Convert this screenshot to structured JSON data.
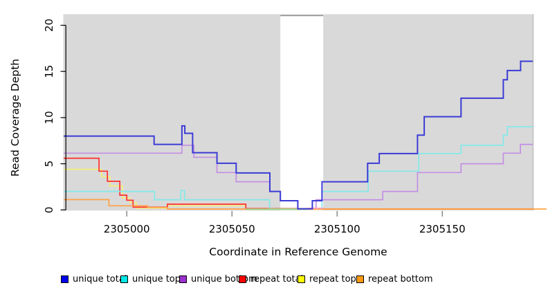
{
  "chart_data": {
    "type": "line",
    "subtype": "step-coverage",
    "title": "",
    "xlabel": "Coordinate in Reference Genome",
    "ylabel": "Read Coverage Depth",
    "xlim": [
      2304970,
      2305193
    ],
    "ylim": [
      0,
      21.2
    ],
    "x_ticks": [
      2305000,
      2305050,
      2305100,
      2305150
    ],
    "y_ticks": [
      0,
      5,
      10,
      15,
      20
    ],
    "grid": "off",
    "plot_bg_color": "#d9d9d9",
    "masked_region": {
      "x1": 2305073,
      "x2": 2305093.4,
      "fill": "#ffffff",
      "top_border_color": "#8c8c8c",
      "note": "white no-data band over gray plot background"
    },
    "series": [
      {
        "name": "repeat top",
        "line_color": "#f6ee79",
        "points": [
          [
            2304970,
            4.4
          ],
          [
            2304988,
            3.6
          ],
          [
            2304992,
            2.6
          ],
          [
            2304998,
            1.3
          ],
          [
            2305001.5,
            0.8
          ],
          [
            2305004.5,
            0.2
          ],
          [
            2305019.3,
            0.45
          ],
          [
            2305056.6,
            0.07
          ],
          [
            2305193,
            0.07
          ]
        ]
      },
      {
        "name": "repeat total",
        "line_color": "#ff2e2e",
        "points": [
          [
            2304970,
            5.6
          ],
          [
            2304986.8,
            4.2
          ],
          [
            2304990.8,
            3.1
          ],
          [
            2304996.7,
            1.6
          ],
          [
            2305000,
            1.05
          ],
          [
            2305003,
            0.3
          ],
          [
            2305019.3,
            0.62
          ],
          [
            2305056.6,
            0.15
          ],
          [
            2305093,
            0.1
          ],
          [
            2305193,
            0.1
          ]
        ]
      },
      {
        "name": "unique bottom",
        "line_color": "#c38fe3",
        "points": [
          [
            2304970,
            6.15
          ],
          [
            2305026.2,
            7.0
          ],
          [
            2305031.9,
            5.7
          ],
          [
            2305042.9,
            4.05
          ],
          [
            2305052,
            3.05
          ],
          [
            2305067.9,
            2.0
          ],
          [
            2305073,
            1.0
          ],
          [
            2305081.3,
            0.12
          ],
          [
            2305090,
            1.1
          ],
          [
            2305121.7,
            2.0
          ],
          [
            2305138.2,
            4.05
          ],
          [
            2305158.9,
            5.0
          ],
          [
            2305179,
            6.15
          ],
          [
            2305187.1,
            7.1
          ],
          [
            2305193,
            7.1
          ]
        ]
      },
      {
        "name": "unique top",
        "line_color": "#82e9e9",
        "points": [
          [
            2304970,
            2.0
          ],
          [
            2305013.2,
            1.1
          ],
          [
            2305025.7,
            2.1
          ],
          [
            2305027.5,
            1.1
          ],
          [
            2305067.9,
            0.12
          ],
          [
            2305092.8,
            2.0
          ],
          [
            2305114.8,
            4.2
          ],
          [
            2305138.8,
            6.1
          ],
          [
            2305158.9,
            7.0
          ],
          [
            2305179,
            8.1
          ],
          [
            2305180.9,
            9.0
          ],
          [
            2305193,
            9.0
          ]
        ]
      },
      {
        "name": "repeat bottom",
        "line_color": "#ffa143",
        "points": [
          [
            2304970,
            1.12
          ],
          [
            2304991.5,
            0.45
          ],
          [
            2305009.9,
            0.27
          ],
          [
            2305019.3,
            0.1
          ],
          [
            2305199.5,
            0.1
          ]
        ]
      },
      {
        "name": "unique total",
        "line_color": "#3b3bd6",
        "line_width": 2,
        "points": [
          [
            2304970,
            8.0
          ],
          [
            2305013,
            7.1
          ],
          [
            2305026.2,
            9.1
          ],
          [
            2305027.6,
            8.3
          ],
          [
            2305031.3,
            6.2
          ],
          [
            2305042.9,
            5.05
          ],
          [
            2305052,
            4.0
          ],
          [
            2305068,
            2.0
          ],
          [
            2305073,
            1.0
          ],
          [
            2305081.3,
            0.12
          ],
          [
            2305088.2,
            1.0
          ],
          [
            2305092.8,
            3.05
          ],
          [
            2305114.5,
            5.05
          ],
          [
            2305120,
            6.1
          ],
          [
            2305138.2,
            8.1
          ],
          [
            2305141.4,
            10.1
          ],
          [
            2305158.9,
            12.1
          ],
          [
            2305179,
            14.1
          ],
          [
            2305180.9,
            15.1
          ],
          [
            2305187.2,
            16.1
          ],
          [
            2305193,
            16.1
          ]
        ]
      }
    ],
    "overlap_segments": [
      {
        "appears": "green blend of unique-top over repeat-top at zero depth",
        "color": "#90d890",
        "y": 0.07,
        "x1": 2305056.6,
        "x2": 2305086,
        "before_series": "unique total"
      },
      {
        "appears": "pink blend of repeat-total over unique-bottom at zero depth",
        "color": "#ff9fc0",
        "y": 0.18,
        "x1": 2305086,
        "x2": 2305094,
        "before_series": "unique total"
      }
    ],
    "legend_position": "bottom-horizontal"
  },
  "axes": {
    "x_tick_labels": [
      "2305000",
      "2305050",
      "2305100",
      "2305150"
    ],
    "y_tick_labels": [
      "0",
      "5",
      "10",
      "15",
      "20"
    ]
  },
  "legend": {
    "items": [
      {
        "label": "unique total",
        "color": "#0000ee",
        "x": 88
      },
      {
        "label": "unique top",
        "color": "#00e5e5",
        "x": 174
      },
      {
        "label": "unique bottom",
        "color": "#9b30d0",
        "x": 259
      },
      {
        "label": "repeat total",
        "color": "#ff0000",
        "x": 345
      },
      {
        "label": "repeat top",
        "color": "#ffff00",
        "x": 430
      },
      {
        "label": "repeat bottom",
        "color": "#ff9912",
        "x": 515
      }
    ]
  }
}
